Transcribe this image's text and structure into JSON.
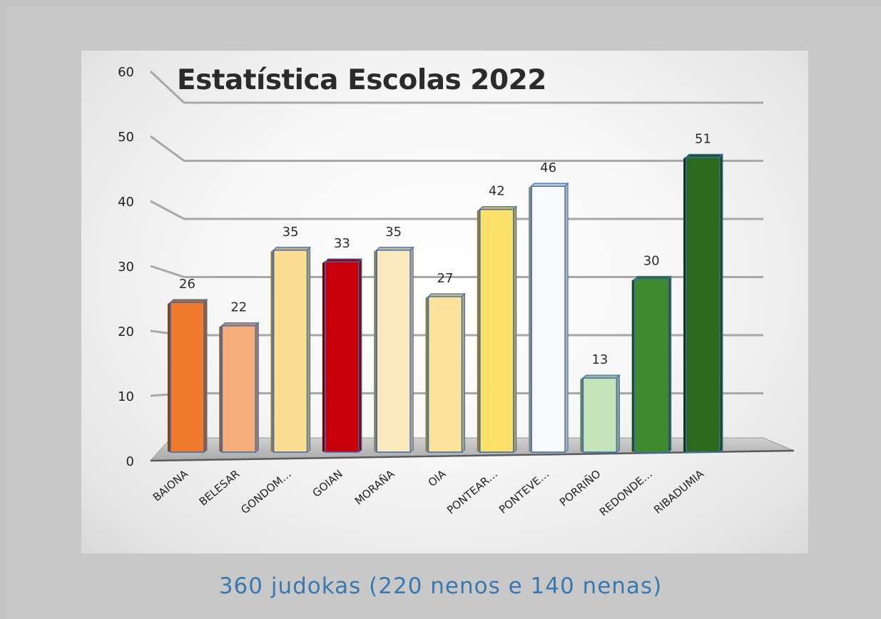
{
  "chart_data": {
    "type": "bar",
    "title": "Estatística Escolas 2022",
    "categories": [
      "BAIONA",
      "BELESAR",
      "GONDOM…",
      "GOIAN",
      "MORAÑA",
      "OIA",
      "PONTEAR…",
      "PONTEVE…",
      "PORRIÑO",
      "REDONDE…",
      "RIBADUMIA"
    ],
    "values": [
      26,
      22,
      35,
      33,
      35,
      27,
      42,
      46,
      13,
      30,
      51
    ],
    "data_labels": [
      "26",
      "22",
      "35",
      "33",
      "35",
      "27",
      "42",
      "46",
      "13",
      "30",
      "51"
    ],
    "colors": [
      "#ef7a2c",
      "#f6ad7c",
      "#fbdc93",
      "#c8000c",
      "#fbe9bd",
      "#fde39a",
      "#fbe06a",
      "#f8fbfb",
      "#c6e4ba",
      "#3f8b2d",
      "#2c6a1e"
    ],
    "yticks": [
      "0",
      "10",
      "20",
      "30",
      "40",
      "50",
      "60"
    ],
    "ylim": [
      0,
      60
    ],
    "grid": true,
    "style": "3d-bar"
  },
  "caption": "360 judokas (220 nenos e 140 nenas)"
}
